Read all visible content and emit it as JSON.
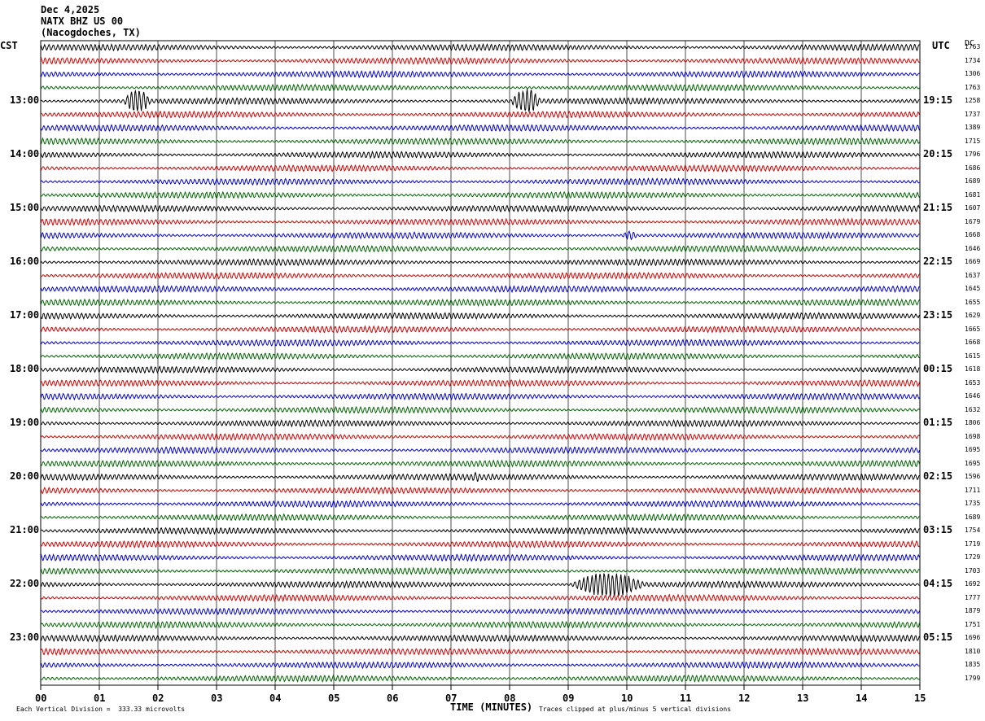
{
  "header": {
    "date": "Dec 4,2025",
    "station": "NATX BHZ US 00",
    "location": "(Nacogdoches, TX)"
  },
  "axes": {
    "left_label": "CST",
    "right_label": "UTC",
    "far_right_label": "DC",
    "xlabel": "TIME (MINUTES)"
  },
  "footer": {
    "scale_note": "Each Vertical Division =  333.33 microvolts",
    "clip_note": "Traces clipped at plus/minus 5 vertical divisions"
  },
  "colors": {
    "trace_cycle": [
      "#000000",
      "#d40000",
      "#0000d4",
      "#006400"
    ],
    "grid": "#000000"
  },
  "chart_data": {
    "type": "line",
    "title": "",
    "xlim": [
      0,
      15
    ],
    "x_ticks": [
      "00",
      "01",
      "02",
      "03",
      "04",
      "05",
      "06",
      "07",
      "08",
      "09",
      "10",
      "11",
      "12",
      "13",
      "14",
      "15"
    ],
    "cst_hour_labels": [
      "13:00",
      "14:00",
      "15:00",
      "16:00",
      "17:00",
      "18:00",
      "19:00",
      "20:00",
      "21:00",
      "22:00",
      "23:00"
    ],
    "utc_hour_labels": [
      "19:15",
      "20:15",
      "21:15",
      "22:15",
      "23:15",
      "00:15",
      "01:15",
      "02:15",
      "03:15",
      "04:15",
      "05:15"
    ],
    "trace_count": 48,
    "traces_per_hour": 4,
    "dc_offsets": [
      1763,
      1734,
      1306,
      1763,
      1258,
      1737,
      1389,
      1715,
      1796,
      1686,
      1689,
      1681,
      1607,
      1679,
      1668,
      1646,
      1669,
      1637,
      1645,
      1655,
      1629,
      1665,
      1668,
      1615,
      1618,
      1653,
      1646,
      1632,
      1806,
      1698,
      1695,
      1695,
      1596,
      1711,
      1735,
      1689,
      1754,
      1719,
      1729,
      1703,
      1692,
      1777,
      1879,
      1751,
      1696,
      1810,
      1835,
      1799
    ],
    "events": [
      {
        "trace": 4,
        "start_min": 1.4,
        "end_min": 2.2,
        "amplitude": "large"
      },
      {
        "trace": 4,
        "start_min": 8.0,
        "end_min": 8.9,
        "amplitude": "large"
      },
      {
        "trace": 40,
        "start_min": 9.0,
        "end_min": 11.2,
        "amplitude": "large"
      },
      {
        "trace": 32,
        "start_min": 7.3,
        "end_min": 7.7,
        "amplitude": "small"
      },
      {
        "trace": 14,
        "start_min": 9.9,
        "end_min": 10.4,
        "amplitude": "small"
      }
    ]
  }
}
